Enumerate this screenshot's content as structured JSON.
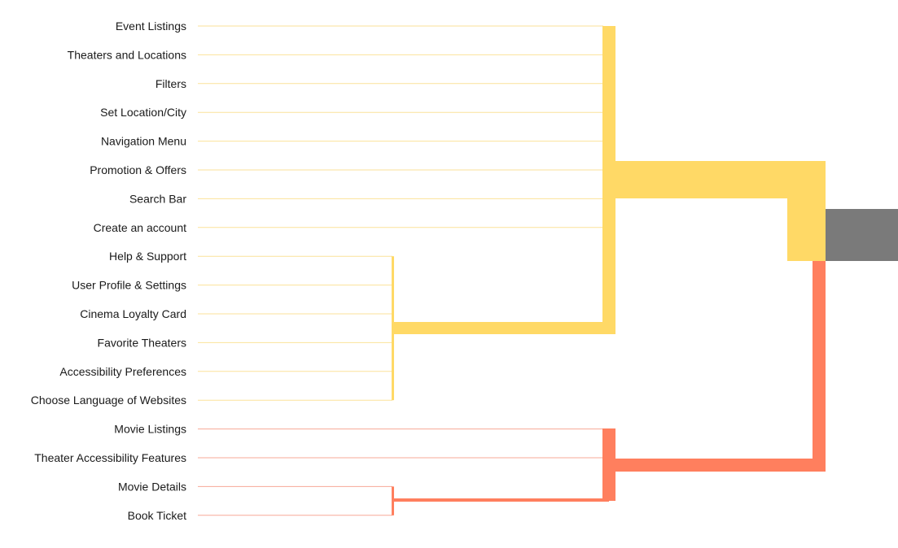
{
  "colors": {
    "yellow": "#FFD966",
    "yellow_thin": "#FBE29A",
    "coral": "#FF7F5E",
    "coral_thin": "#F7A897",
    "root": "#7A7A7A",
    "text": "#1a1a1a"
  },
  "diagram": {
    "leaves": [
      {
        "label": "Event Listings",
        "group": "yellow"
      },
      {
        "label": "Theaters and Locations",
        "group": "yellow"
      },
      {
        "label": "Filters",
        "group": "yellow"
      },
      {
        "label": "Set Location/City",
        "group": "yellow"
      },
      {
        "label": "Navigation Menu",
        "group": "yellow"
      },
      {
        "label": "Promotion & Offers",
        "group": "yellow"
      },
      {
        "label": "Search Bar",
        "group": "yellow"
      },
      {
        "label": "Create an account",
        "group": "yellow"
      },
      {
        "label": "Help & Support",
        "group": "yellow"
      },
      {
        "label": "User Profile & Settings",
        "group": "yellow"
      },
      {
        "label": "Cinema Loyalty Card",
        "group": "yellow"
      },
      {
        "label": "Favorite Theaters",
        "group": "yellow"
      },
      {
        "label": "Accessibility Preferences",
        "group": "yellow"
      },
      {
        "label": "Choose Language of Websites",
        "group": "yellow"
      },
      {
        "label": "Movie Listings",
        "group": "coral"
      },
      {
        "label": "Theater Accessibility Features",
        "group": "coral"
      },
      {
        "label": "Movie Details",
        "group": "coral"
      },
      {
        "label": "Book Ticket",
        "group": "coral"
      }
    ]
  }
}
